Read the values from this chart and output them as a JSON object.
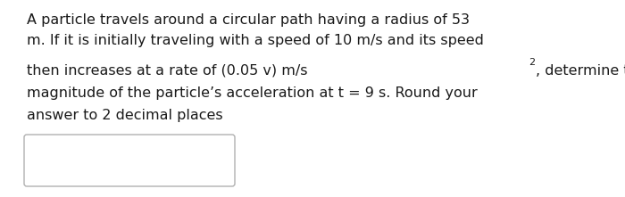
{
  "background_color": "#ffffff",
  "border_color": "#b0b0b0",
  "text_color": "#1a1a1a",
  "line1": "A particle travels around a circular path having a radius of 53",
  "line2": "m. If it is initially traveling with a speed of 10 m/s and its speed",
  "line3a": "then increases at a rate of (0.05 v) m/s ",
  "line3sup": "2",
  "line3b": ", determine the",
  "line4": "magnitude of the particle’s acceleration at t = 9 s. Round your",
  "line5": "answer to 2 decimal places",
  "main_fontsize": 11.5,
  "sup_fontsize": 8.0,
  "font_family": "DejaVu Sans"
}
